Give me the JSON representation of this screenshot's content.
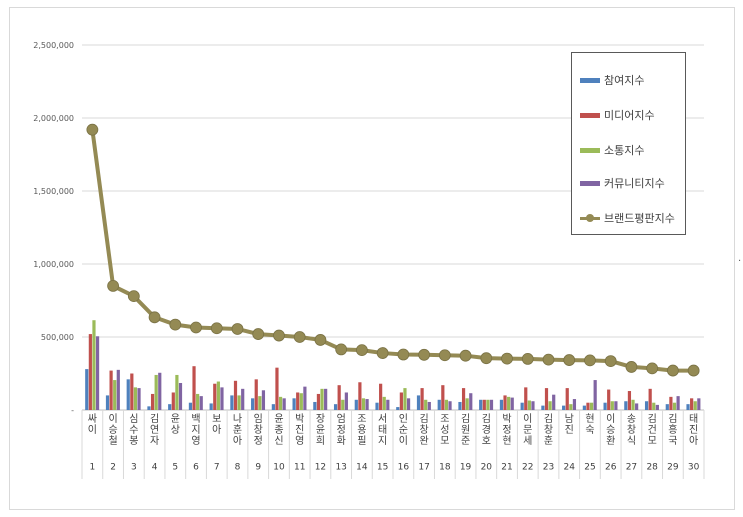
{
  "chart_data": {
    "type": "bar",
    "title": "",
    "xlabel": "",
    "ylabel": "",
    "ylim": [
      0,
      2500000
    ],
    "y_ticks": [
      "-",
      "500,000",
      "1,000,000",
      "1,500,000",
      "2,000,000",
      "2,500,000"
    ],
    "grid": true,
    "legend_position": "top-right",
    "categories": [
      "싸이",
      "이승철",
      "심수봉",
      "김연자",
      "윤상",
      "백지영",
      "보아",
      "나훈아",
      "임창정",
      "윤종신",
      "박진영",
      "장윤희",
      "엄정화",
      "조용필",
      "서태지",
      "인순이",
      "김창완",
      "조성모",
      "김원준",
      "김경호",
      "박정현",
      "이문세",
      "김창훈",
      "남진",
      "현숙",
      "이승환",
      "송창식",
      "김건모",
      "김흥국",
      "태진아"
    ],
    "ranks": [
      "1",
      "2",
      "3",
      "4",
      "5",
      "6",
      "7",
      "8",
      "9",
      "10",
      "11",
      "12",
      "13",
      "14",
      "15",
      "16",
      "17",
      "18",
      "19",
      "20",
      "21",
      "22",
      "23",
      "24",
      "25",
      "26",
      "27",
      "28",
      "29",
      "30"
    ],
    "series": [
      {
        "name": "참여지수",
        "type": "bar",
        "color": "#4f81bd",
        "values": [
          280000,
          100000,
          210000,
          25000,
          40000,
          50000,
          45000,
          100000,
          80000,
          40000,
          80000,
          55000,
          40000,
          70000,
          50000,
          20000,
          100000,
          70000,
          55000,
          70000,
          70000,
          50000,
          30000,
          30000,
          30000,
          50000,
          60000,
          60000,
          40000,
          40000
        ]
      },
      {
        "name": "미디어지수",
        "type": "bar",
        "color": "#c0504d",
        "values": [
          520000,
          270000,
          250000,
          110000,
          120000,
          300000,
          180000,
          200000,
          210000,
          290000,
          120000,
          110000,
          170000,
          190000,
          180000,
          120000,
          150000,
          170000,
          150000,
          70000,
          100000,
          155000,
          150000,
          150000,
          50000,
          140000,
          130000,
          145000,
          90000,
          80000
        ]
      },
      {
        "name": "소통지수",
        "type": "bar",
        "color": "#9bbb59",
        "values": [
          615000,
          205000,
          155000,
          240000,
          240000,
          110000,
          195000,
          100000,
          95000,
          90000,
          115000,
          145000,
          70000,
          80000,
          90000,
          150000,
          70000,
          70000,
          80000,
          70000,
          90000,
          65000,
          60000,
          40000,
          50000,
          60000,
          70000,
          50000,
          50000,
          60000
        ]
      },
      {
        "name": "커뮤니티지수",
        "type": "bar",
        "color": "#8064a2",
        "values": [
          505000,
          275000,
          150000,
          255000,
          185000,
          95000,
          155000,
          145000,
          135000,
          80000,
          160000,
          145000,
          120000,
          75000,
          70000,
          80000,
          55000,
          60000,
          115000,
          70000,
          85000,
          60000,
          105000,
          75000,
          205000,
          60000,
          45000,
          35000,
          95000,
          80000
        ]
      },
      {
        "name": "브랜드평판지수",
        "type": "line",
        "color": "#948a54",
        "values": [
          1920000,
          850000,
          780000,
          635000,
          585000,
          565000,
          560000,
          555000,
          520000,
          510000,
          500000,
          480000,
          415000,
          410000,
          390000,
          380000,
          378000,
          375000,
          372000,
          355000,
          352000,
          350000,
          345000,
          342000,
          340000,
          335000,
          295000,
          285000,
          270000,
          270000
        ]
      }
    ]
  }
}
